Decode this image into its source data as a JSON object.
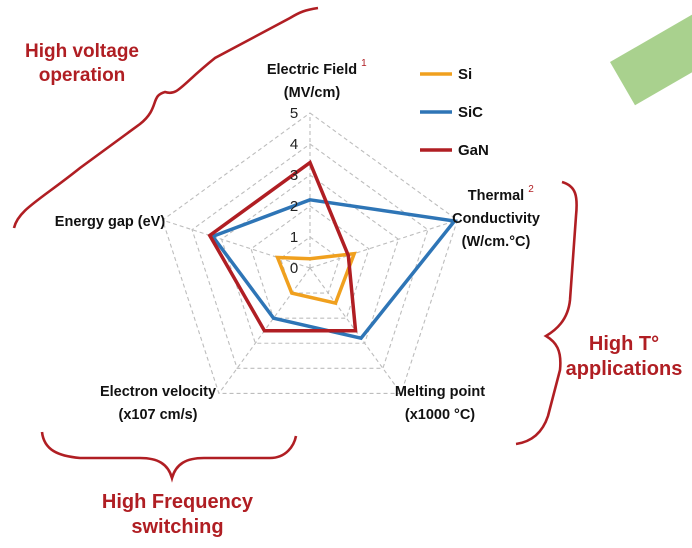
{
  "chart_data": {
    "type": "radar",
    "axes": [
      {
        "line1": "Electric Field",
        "sup": "1",
        "line2": "(MV/cm)"
      },
      {
        "line1": "Thermal",
        "sup": "2",
        "line2": "Conductivity",
        "line3": "(W/cm.°C)"
      },
      {
        "line1": "Melting point",
        "line2": "(x1000 °C)"
      },
      {
        "line1": "Electron velocity",
        "line2": "(x107 cm/s)"
      },
      {
        "line1": "Energy gap (eV)"
      }
    ],
    "range": [
      0,
      5
    ],
    "ticks": [
      "0",
      "1",
      "2",
      "3",
      "4",
      "5"
    ],
    "grid": true,
    "legend_position": "top-right",
    "series": [
      {
        "name": "Si",
        "color": "#f0a01e",
        "values": [
          0.3,
          1.5,
          1.4,
          1.0,
          1.1
        ]
      },
      {
        "name": "SiC",
        "color": "#2e75b6",
        "values": [
          2.2,
          4.9,
          2.8,
          2.0,
          3.3
        ]
      },
      {
        "name": "GaN",
        "color": "#b01e23",
        "values": [
          3.4,
          1.3,
          2.5,
          2.5,
          3.4
        ]
      }
    ]
  },
  "callouts": {
    "high_voltage": [
      "High voltage",
      "operation"
    ],
    "high_temp": [
      "High T°",
      "applications"
    ],
    "high_freq": [
      "High Frequency",
      "switching"
    ]
  },
  "colors": {
    "accent": "#b01e23",
    "grid": "#bdbdbd",
    "decor_green": "#a9d18e"
  }
}
